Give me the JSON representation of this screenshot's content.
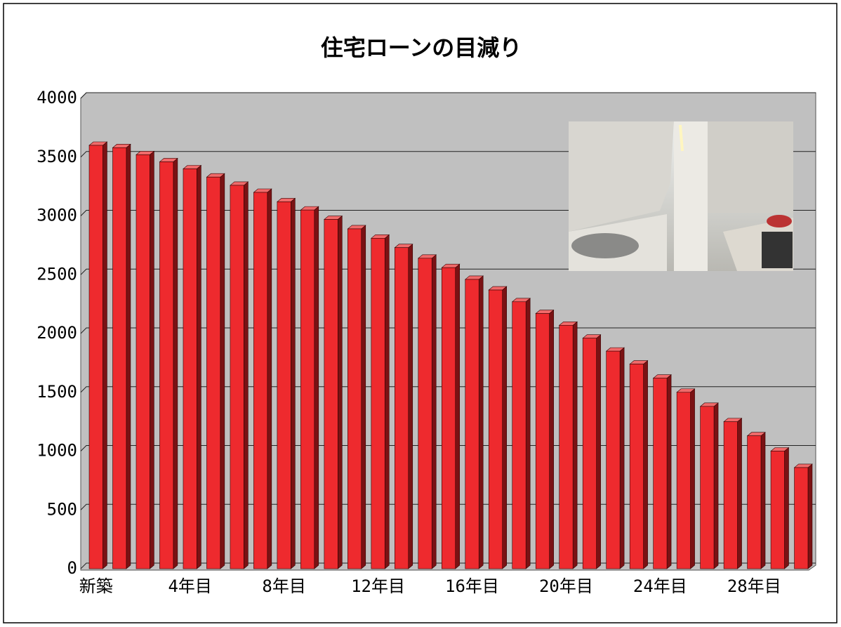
{
  "chart_data": {
    "type": "bar",
    "title": "住宅ローンの目減り",
    "categories": [
      "新築",
      null,
      null,
      null,
      "4年目",
      null,
      null,
      null,
      "8年目",
      null,
      null,
      null,
      "12年目",
      null,
      null,
      null,
      "16年目",
      null,
      null,
      null,
      "20年目",
      null,
      null,
      null,
      "24年目",
      null,
      null,
      null,
      "28年目",
      null,
      null
    ],
    "values": [
      3600,
      3580,
      3520,
      3460,
      3400,
      3330,
      3260,
      3200,
      3120,
      3050,
      2970,
      2890,
      2810,
      2730,
      2640,
      2560,
      2460,
      2370,
      2270,
      2170,
      2070,
      1960,
      1850,
      1740,
      1620,
      1500,
      1380,
      1250,
      1130,
      1000,
      860
    ],
    "color": "#ee2a2e",
    "ylim": [
      0,
      4000
    ],
    "yticks": [
      0,
      500,
      1000,
      1500,
      2000,
      2500,
      3000,
      3500,
      4000
    ],
    "grid": true
  }
}
